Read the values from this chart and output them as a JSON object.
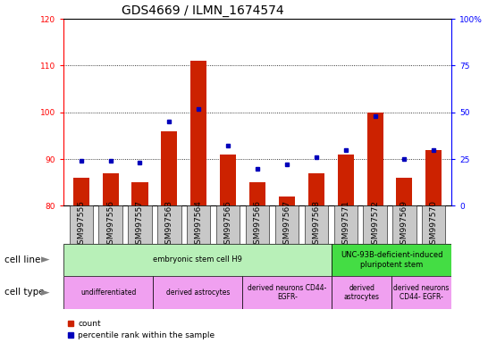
{
  "title": "GDS4669 / ILMN_1674574",
  "samples": [
    "GSM997555",
    "GSM997556",
    "GSM997557",
    "GSM997563",
    "GSM997564",
    "GSM997565",
    "GSM997566",
    "GSM997567",
    "GSM997568",
    "GSM997571",
    "GSM997572",
    "GSM997569",
    "GSM997570"
  ],
  "counts": [
    86,
    87,
    85,
    96,
    111,
    91,
    85,
    82,
    87,
    91,
    100,
    86,
    92
  ],
  "percentiles": [
    24,
    24,
    23,
    45,
    52,
    32,
    20,
    22,
    26,
    30,
    48,
    25,
    30
  ],
  "ylim_left": [
    80,
    120
  ],
  "ylim_right": [
    0,
    100
  ],
  "yticks_left": [
    80,
    90,
    100,
    110,
    120
  ],
  "yticks_right": [
    0,
    25,
    50,
    75,
    100
  ],
  "cell_line_groups": [
    {
      "label": "embryonic stem cell H9",
      "start": 0,
      "end": 9,
      "color": "#b8f0b8"
    },
    {
      "label": "UNC-93B-deficient-induced\npluripotent stem",
      "start": 9,
      "end": 13,
      "color": "#44dd44"
    }
  ],
  "cell_type_groups": [
    {
      "label": "undifferentiated",
      "start": 0,
      "end": 3,
      "color": "#f0a0f0"
    },
    {
      "label": "derived astrocytes",
      "start": 3,
      "end": 6,
      "color": "#f0a0f0"
    },
    {
      "label": "derived neurons CD44-\nEGFR-",
      "start": 6,
      "end": 9,
      "color": "#f0a0f0"
    },
    {
      "label": "derived\nastrocytes",
      "start": 9,
      "end": 11,
      "color": "#f0a0f0"
    },
    {
      "label": "derived neurons\nCD44- EGFR-",
      "start": 11,
      "end": 13,
      "color": "#f0a0f0"
    }
  ],
  "bar_color": "#cc2200",
  "dot_color": "#0000bb",
  "bg_color": "#ffffff",
  "tick_bg_color": "#c8c8c8",
  "grid_color": "black",
  "title_fontsize": 10,
  "tick_fontsize": 6.5,
  "anno_fontsize": 7,
  "label_row_fontsize": 7.5
}
